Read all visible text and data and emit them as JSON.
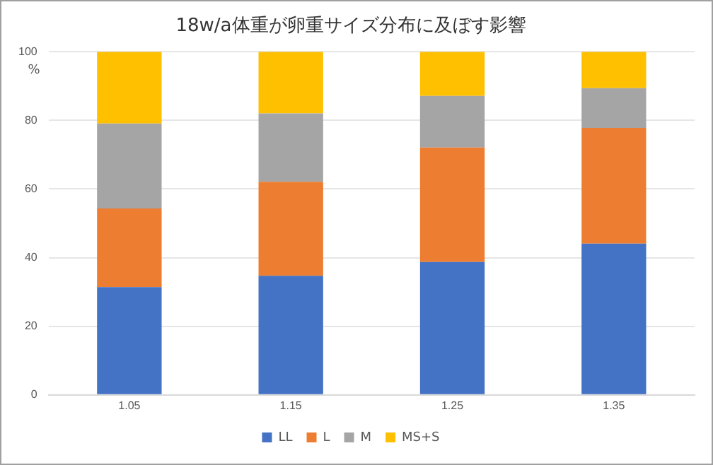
{
  "chart_data": {
    "type": "bar",
    "title": "18w/a体重が卵重サイズ分布に及ぼす影響",
    "ylabel": "%",
    "categories": [
      "1.05",
      "1.15",
      "1.25",
      "1.35"
    ],
    "stacked": true,
    "series": [
      {
        "name": "LL",
        "color": "#4472c4",
        "values": [
          31.4,
          34.7,
          38.7,
          44.1
        ]
      },
      {
        "name": "L",
        "color": "#ed7d31",
        "values": [
          22.9,
          27.4,
          33.4,
          33.7
        ]
      },
      {
        "name": "M",
        "color": "#a5a5a5",
        "values": [
          24.8,
          19.9,
          15.0,
          11.6
        ]
      },
      {
        "name": "MS+S",
        "color": "#ffc000",
        "values": [
          20.9,
          18.0,
          12.9,
          10.6
        ]
      }
    ],
    "ylim": [
      0,
      100
    ],
    "yticks": [
      0,
      20,
      40,
      60,
      80,
      100
    ],
    "grid": "y",
    "legend": "bottom"
  }
}
